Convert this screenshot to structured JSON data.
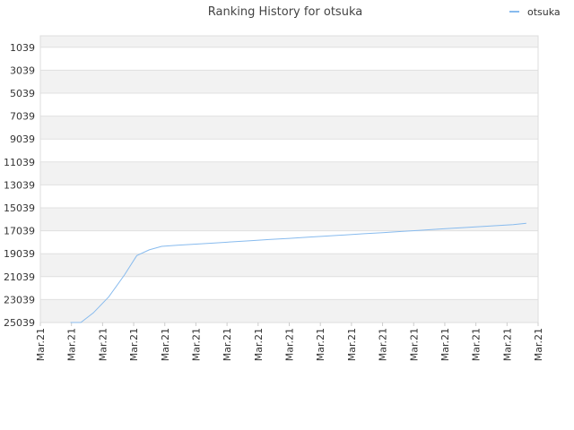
{
  "chart_data": {
    "type": "line",
    "title": "Ranking History for otsuka",
    "y_reversed": true,
    "ylim": [
      25039,
      39
    ],
    "y_ticks": [
      1039,
      3039,
      5039,
      7039,
      9039,
      11039,
      13039,
      15039,
      17039,
      19039,
      21039,
      23039,
      25039
    ],
    "x_tick_labels": [
      "Mar.21",
      "Mar.21",
      "Mar.21",
      "Mar.21",
      "Mar.21",
      "Mar.21",
      "Mar.21",
      "Mar.21",
      "Mar.21",
      "Mar.21",
      "Mar.21",
      "Mar.21",
      "Mar.21",
      "Mar.21",
      "Mar.21",
      "Mar.21",
      "Mar.21"
    ],
    "x_range": [
      0,
      16
    ],
    "grid": true,
    "band_colors": [
      "#f2f2f2",
      "#ffffff"
    ],
    "legend": {
      "position": "top-right",
      "entries": [
        {
          "name": "otsuka",
          "color": "#88bbee"
        }
      ]
    },
    "series": [
      {
        "name": "otsuka",
        "color": "#88bbee",
        "points": [
          [
            0.97,
            25039
          ],
          [
            1.3,
            25039
          ],
          [
            1.7,
            24200
          ],
          [
            2.2,
            22800
          ],
          [
            2.7,
            20900
          ],
          [
            3.1,
            19200
          ],
          [
            3.5,
            18700
          ],
          [
            3.9,
            18400
          ],
          [
            4.4,
            18300
          ],
          [
            5.0,
            18200
          ],
          [
            5.6,
            18100
          ],
          [
            6.2,
            18000
          ],
          [
            6.8,
            17900
          ],
          [
            7.4,
            17800
          ],
          [
            8.0,
            17700
          ],
          [
            8.6,
            17600
          ],
          [
            9.2,
            17500
          ],
          [
            9.8,
            17400
          ],
          [
            10.4,
            17300
          ],
          [
            11.0,
            17200
          ],
          [
            11.6,
            17100
          ],
          [
            12.2,
            17000
          ],
          [
            12.8,
            16900
          ],
          [
            13.4,
            16800
          ],
          [
            14.0,
            16700
          ],
          [
            14.6,
            16600
          ],
          [
            15.2,
            16500
          ],
          [
            15.62,
            16380
          ]
        ]
      }
    ]
  }
}
